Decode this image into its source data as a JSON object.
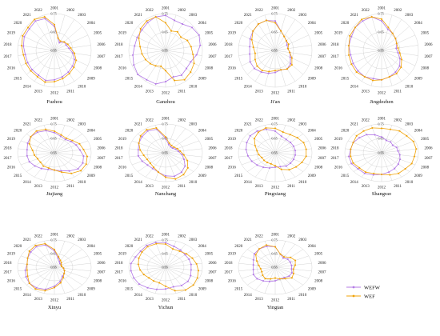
{
  "colors": {
    "WEFW": "#b47be6",
    "WEF": "#f0a30a"
  },
  "legend": [
    {
      "label": "WEFW",
      "color": "#b47be6"
    },
    {
      "label": "WEF",
      "color": "#f0a30a"
    }
  ],
  "chart_data": [
    {
      "type": "radar",
      "title": "Fuzhou",
      "categories": [
        "2001",
        "2002",
        "2003",
        "2004",
        "2005",
        "2006",
        "2007",
        "2008",
        "2009",
        "2010",
        "2011",
        "2012",
        "2013",
        "2014",
        "2015",
        "2016",
        "2017",
        "2018",
        "2019",
        "2020",
        "2021",
        "2022"
      ],
      "ylim": [
        0.55,
        0.75
      ],
      "ticks": [
        0.55,
        0.65,
        0.75
      ],
      "series": [
        {
          "name": "WEFW",
          "values": [
            0.68,
            0.62,
            0.6,
            0.62,
            0.62,
            0.63,
            0.65,
            0.67,
            0.68,
            0.69,
            0.7,
            0.71,
            0.72,
            0.71,
            0.71,
            0.71,
            0.71,
            0.72,
            0.73,
            0.73,
            0.74,
            0.73
          ]
        },
        {
          "name": "WEF",
          "values": [
            0.69,
            0.62,
            0.61,
            0.62,
            0.63,
            0.64,
            0.66,
            0.68,
            0.69,
            0.7,
            0.71,
            0.72,
            0.73,
            0.72,
            0.72,
            0.72,
            0.72,
            0.73,
            0.74,
            0.74,
            0.75,
            0.74
          ]
        }
      ]
    },
    {
      "type": "radar",
      "title": "Ganzhou",
      "categories": [
        "2001",
        "2002",
        "2003",
        "2004",
        "2005",
        "2006",
        "2007",
        "2008",
        "2009",
        "2010",
        "2011",
        "2012",
        "2013",
        "2014",
        "2015",
        "2016",
        "2017",
        "2018",
        "2019",
        "2020",
        "2021",
        "2022"
      ],
      "ylim": [
        0.55,
        0.75
      ],
      "ticks": [
        0.55,
        0.65,
        0.75
      ],
      "series": [
        {
          "name": "WEFW",
          "values": [
            0.74,
            0.72,
            0.72,
            0.74,
            0.75,
            0.74,
            0.72,
            0.7,
            0.7,
            0.71,
            0.7,
            0.72,
            0.74,
            0.74,
            0.75,
            0.74,
            0.73,
            0.72,
            0.72,
            0.72,
            0.73,
            0.74
          ]
        },
        {
          "name": "WEF",
          "values": [
            0.7,
            0.66,
            0.67,
            0.66,
            0.68,
            0.69,
            0.7,
            0.72,
            0.73,
            0.74,
            0.72,
            0.66,
            0.64,
            0.65,
            0.66,
            0.67,
            0.68,
            0.69,
            0.71,
            0.73,
            0.74,
            0.74
          ]
        }
      ]
    },
    {
      "type": "radar",
      "title": "Ji'an",
      "categories": [
        "2001",
        "2002",
        "2003",
        "2004",
        "2005",
        "2006",
        "2007",
        "2008",
        "2009",
        "2010",
        "2011",
        "2012",
        "2013",
        "2014",
        "2015",
        "2016",
        "2017",
        "2018",
        "2019",
        "2020",
        "2021",
        "2022"
      ],
      "ylim": [
        0.55,
        0.75
      ],
      "ticks": [
        0.55,
        0.65,
        0.75
      ],
      "series": [
        {
          "name": "WEFW",
          "values": [
            0.71,
            0.66,
            0.64,
            0.63,
            0.62,
            0.62,
            0.63,
            0.64,
            0.66,
            0.67,
            0.66,
            0.67,
            0.68,
            0.69,
            0.7,
            0.7,
            0.69,
            0.69,
            0.7,
            0.71,
            0.72,
            0.72
          ]
        },
        {
          "name": "WEF",
          "values": [
            0.7,
            0.66,
            0.64,
            0.63,
            0.63,
            0.62,
            0.63,
            0.65,
            0.67,
            0.67,
            0.66,
            0.66,
            0.67,
            0.68,
            0.68,
            0.67,
            0.66,
            0.67,
            0.69,
            0.71,
            0.72,
            0.72
          ]
        }
      ]
    },
    {
      "type": "radar",
      "title": "Jingdezhen",
      "categories": [
        "2001",
        "2002",
        "2003",
        "2004",
        "2005",
        "2006",
        "2007",
        "2008",
        "2009",
        "2010",
        "2011",
        "2012",
        "2013",
        "2014",
        "2015",
        "2016",
        "2017",
        "2018",
        "2019",
        "2020",
        "2021",
        "2022"
      ],
      "ylim": [
        0.55,
        0.75
      ],
      "ticks": [
        0.55,
        0.65,
        0.75
      ],
      "series": [
        {
          "name": "WEFW",
          "values": [
            0.71,
            0.67,
            0.66,
            0.65,
            0.64,
            0.63,
            0.64,
            0.66,
            0.68,
            0.69,
            0.7,
            0.71,
            0.71,
            0.72,
            0.72,
            0.72,
            0.72,
            0.73,
            0.73,
            0.74,
            0.74,
            0.74
          ]
        },
        {
          "name": "WEF",
          "values": [
            0.72,
            0.68,
            0.66,
            0.65,
            0.64,
            0.64,
            0.65,
            0.67,
            0.69,
            0.7,
            0.7,
            0.71,
            0.72,
            0.72,
            0.73,
            0.73,
            0.73,
            0.73,
            0.74,
            0.74,
            0.75,
            0.74
          ]
        }
      ]
    },
    {
      "type": "radar",
      "title": "Jiujiang",
      "categories": [
        "2001",
        "2002",
        "2003",
        "2004",
        "2005",
        "2006",
        "2007",
        "2008",
        "2009",
        "2010",
        "2011",
        "2012",
        "2013",
        "2014",
        "2015",
        "2016",
        "2017",
        "2018",
        "2019",
        "2020",
        "2021",
        "2022"
      ],
      "ylim": [
        0.55,
        0.75
      ],
      "ticks": [
        0.55,
        0.65,
        0.75
      ],
      "series": [
        {
          "name": "WEFW",
          "values": [
            0.69,
            0.67,
            0.66,
            0.67,
            0.68,
            0.69,
            0.71,
            0.72,
            0.72,
            0.7,
            0.68,
            0.67,
            0.67,
            0.68,
            0.69,
            0.7,
            0.7,
            0.7,
            0.71,
            0.72,
            0.72,
            0.71
          ]
        },
        {
          "name": "WEF",
          "values": [
            0.7,
            0.68,
            0.67,
            0.68,
            0.7,
            0.71,
            0.73,
            0.74,
            0.74,
            0.72,
            0.69,
            0.67,
            0.66,
            0.66,
            0.65,
            0.65,
            0.66,
            0.67,
            0.7,
            0.72,
            0.73,
            0.72
          ]
        }
      ]
    },
    {
      "type": "radar",
      "title": "Nanchang",
      "categories": [
        "2001",
        "2002",
        "2003",
        "2004",
        "2005",
        "2006",
        "2007",
        "2008",
        "2009",
        "2010",
        "2011",
        "2012",
        "2013",
        "2014",
        "2015",
        "2016",
        "2017",
        "2018",
        "2019",
        "2020",
        "2021",
        "2022"
      ],
      "ylim": [
        0.55,
        0.75
      ],
      "ticks": [
        0.55,
        0.65,
        0.75
      ],
      "series": [
        {
          "name": "WEFW",
          "values": [
            0.65,
            0.61,
            0.6,
            0.6,
            0.61,
            0.62,
            0.64,
            0.66,
            0.69,
            0.71,
            0.72,
            0.71,
            0.69,
            0.68,
            0.68,
            0.69,
            0.7,
            0.7,
            0.71,
            0.72,
            0.73,
            0.72
          ]
        },
        {
          "name": "WEF",
          "values": [
            0.66,
            0.62,
            0.61,
            0.61,
            0.62,
            0.63,
            0.65,
            0.68,
            0.71,
            0.73,
            0.74,
            0.72,
            0.69,
            0.67,
            0.66,
            0.66,
            0.67,
            0.69,
            0.71,
            0.73,
            0.74,
            0.73
          ]
        }
      ]
    },
    {
      "type": "radar",
      "title": "Pingxiang",
      "categories": [
        "2001",
        "2002",
        "2003",
        "2004",
        "2005",
        "2006",
        "2007",
        "2008",
        "2009",
        "2010",
        "2011",
        "2012",
        "2013",
        "2014",
        "2015",
        "2016",
        "2017",
        "2018",
        "2019",
        "2020",
        "2021",
        "2022"
      ],
      "ylim": [
        0.55,
        0.75
      ],
      "ticks": [
        0.55,
        0.65,
        0.75
      ],
      "series": [
        {
          "name": "WEFW",
          "values": [
            0.7,
            0.67,
            0.66,
            0.66,
            0.66,
            0.66,
            0.66,
            0.66,
            0.66,
            0.66,
            0.65,
            0.65,
            0.66,
            0.67,
            0.68,
            0.69,
            0.7,
            0.71,
            0.72,
            0.73,
            0.73,
            0.72
          ]
        },
        {
          "name": "WEF",
          "values": [
            0.72,
            0.7,
            0.7,
            0.71,
            0.72,
            0.72,
            0.72,
            0.71,
            0.7,
            0.69,
            0.67,
            0.64,
            0.63,
            0.63,
            0.63,
            0.63,
            0.64,
            0.65,
            0.67,
            0.7,
            0.72,
            0.73
          ]
        }
      ]
    },
    {
      "type": "radar",
      "title": "Shangrao",
      "categories": [
        "2001",
        "2002",
        "2003",
        "2004",
        "2005",
        "2006",
        "2007",
        "2008",
        "2009",
        "2010",
        "2011",
        "2012",
        "2013",
        "2014",
        "2015",
        "2016",
        "2017",
        "2018",
        "2019",
        "2020",
        "2021",
        "2022"
      ],
      "ylim": [
        0.55,
        0.75
      ],
      "ticks": [
        0.55,
        0.65,
        0.75
      ],
      "series": [
        {
          "name": "WEFW",
          "values": [
            0.66,
            0.64,
            0.64,
            0.63,
            0.64,
            0.64,
            0.65,
            0.66,
            0.67,
            0.68,
            0.69,
            0.7,
            0.71,
            0.72,
            0.72,
            0.73,
            0.73,
            0.72,
            0.72,
            0.71,
            0.7,
            0.68
          ]
        },
        {
          "name": "WEF",
          "values": [
            0.72,
            0.72,
            0.73,
            0.73,
            0.74,
            0.74,
            0.73,
            0.73,
            0.72,
            0.72,
            0.71,
            0.7,
            0.7,
            0.71,
            0.71,
            0.72,
            0.72,
            0.72,
            0.72,
            0.73,
            0.73,
            0.73
          ]
        }
      ]
    },
    {
      "type": "radar",
      "title": "Xinyu",
      "categories": [
        "2001",
        "2002",
        "2003",
        "2004",
        "2005",
        "2006",
        "2007",
        "2008",
        "2009",
        "2010",
        "2011",
        "2012",
        "2013",
        "2014",
        "2015",
        "2016",
        "2017",
        "2018",
        "2019",
        "2020",
        "2021",
        "2022"
      ],
      "ylim": [
        0.55,
        0.75
      ],
      "ticks": [
        0.55,
        0.65,
        0.75
      ],
      "series": [
        {
          "name": "WEFW",
          "values": [
            0.67,
            0.62,
            0.6,
            0.59,
            0.59,
            0.59,
            0.6,
            0.61,
            0.62,
            0.63,
            0.66,
            0.69,
            0.72,
            0.73,
            0.73,
            0.72,
            0.71,
            0.7,
            0.71,
            0.72,
            0.73,
            0.72
          ]
        },
        {
          "name": "WEF",
          "values": [
            0.68,
            0.63,
            0.61,
            0.6,
            0.59,
            0.59,
            0.6,
            0.61,
            0.62,
            0.64,
            0.67,
            0.7,
            0.73,
            0.74,
            0.73,
            0.71,
            0.7,
            0.7,
            0.71,
            0.73,
            0.74,
            0.73
          ]
        }
      ]
    },
    {
      "type": "radar",
      "title": "Yichun",
      "categories": [
        "2001",
        "2002",
        "2003",
        "2004",
        "2005",
        "2006",
        "2007",
        "2008",
        "2009",
        "2010",
        "2011",
        "2012",
        "2013",
        "2014",
        "2015",
        "2016",
        "2017",
        "2018",
        "2019",
        "2020",
        "2021",
        "2022"
      ],
      "ylim": [
        0.55,
        0.75
      ],
      "ticks": [
        0.55,
        0.65,
        0.75
      ],
      "series": [
        {
          "name": "WEFW",
          "values": [
            0.73,
            0.71,
            0.7,
            0.69,
            0.69,
            0.69,
            0.69,
            0.7,
            0.71,
            0.71,
            0.7,
            0.71,
            0.72,
            0.73,
            0.74,
            0.74,
            0.74,
            0.74,
            0.73,
            0.73,
            0.74,
            0.74
          ]
        },
        {
          "name": "WEF",
          "values": [
            0.72,
            0.69,
            0.69,
            0.7,
            0.71,
            0.72,
            0.73,
            0.74,
            0.75,
            0.75,
            0.73,
            0.69,
            0.67,
            0.67,
            0.67,
            0.68,
            0.69,
            0.7,
            0.71,
            0.72,
            0.73,
            0.73
          ]
        }
      ]
    },
    {
      "type": "radar",
      "title": "Yingtan",
      "categories": [
        "2001",
        "2002",
        "2003",
        "2004",
        "2005",
        "2006",
        "2007",
        "2008",
        "2009",
        "2010",
        "2011",
        "2012",
        "2013",
        "2014",
        "2015",
        "2016",
        "2017",
        "2018",
        "2019",
        "2020",
        "2021",
        "2022"
      ],
      "ylim": [
        0.55,
        0.75
      ],
      "ticks": [
        0.55,
        0.65,
        0.75
      ],
      "series": [
        {
          "name": "WEFW",
          "values": [
            0.7,
            0.65,
            0.63,
            0.64,
            0.64,
            0.64,
            0.64,
            0.65,
            0.65,
            0.64,
            0.64,
            0.65,
            0.66,
            0.67,
            0.68,
            0.68,
            0.67,
            0.67,
            0.68,
            0.7,
            0.71,
            0.71
          ]
        },
        {
          "name": "WEF",
          "values": [
            0.7,
            0.65,
            0.64,
            0.66,
            0.67,
            0.66,
            0.65,
            0.66,
            0.67,
            0.65,
            0.64,
            0.63,
            0.64,
            0.65,
            0.64,
            0.63,
            0.63,
            0.64,
            0.66,
            0.69,
            0.71,
            0.72
          ]
        }
      ]
    }
  ]
}
